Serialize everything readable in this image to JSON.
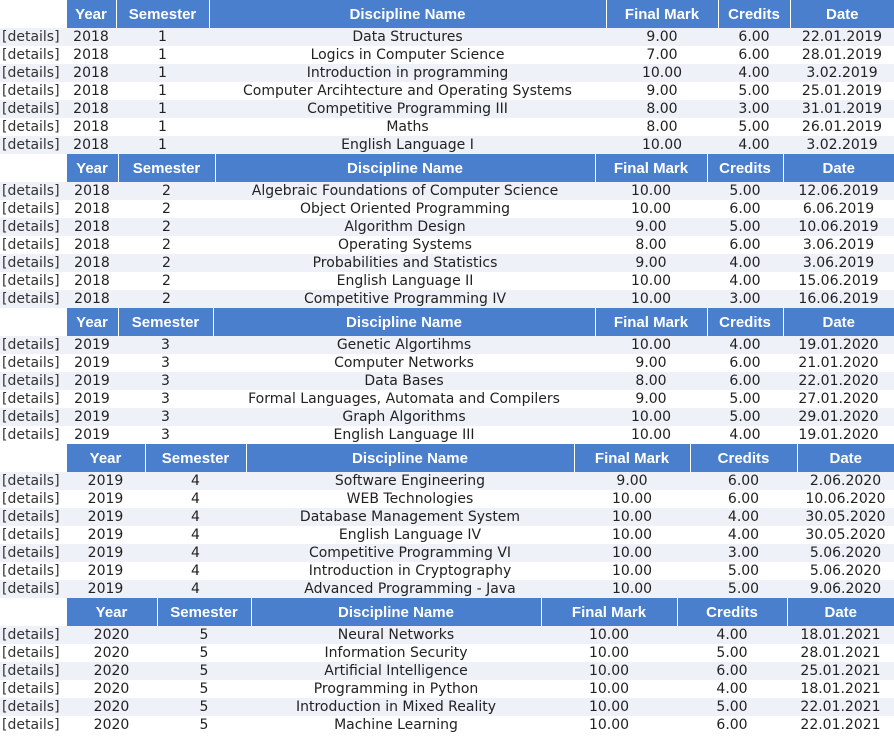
{
  "headers": {
    "details": "",
    "year": "Year",
    "semester": "Semester",
    "discipline": "Discipline Name",
    "final_mark": "Final Mark",
    "credits": "Credits",
    "date": "Date"
  },
  "details_label": "[details]",
  "tables": [
    {
      "rows": [
        {
          "year": "2018",
          "semester": "1",
          "discipline": "Data Structures",
          "mark": "9.00",
          "credits": "6.00",
          "date": "22.01.2019"
        },
        {
          "year": "2018",
          "semester": "1",
          "discipline": "Logics in Computer Science",
          "mark": "7.00",
          "credits": "6.00",
          "date": "28.01.2019"
        },
        {
          "year": "2018",
          "semester": "1",
          "discipline": "Introduction in programming",
          "mark": "10.00",
          "credits": "4.00",
          "date": "3.02.2019"
        },
        {
          "year": "2018",
          "semester": "1",
          "discipline": "Computer Arcihtecture and Operating Systems",
          "mark": "9.00",
          "credits": "5.00",
          "date": "25.01.2019"
        },
        {
          "year": "2018",
          "semester": "1",
          "discipline": "Competitive Programming III",
          "mark": "8.00",
          "credits": "3.00",
          "date": "31.01.2019"
        },
        {
          "year": "2018",
          "semester": "1",
          "discipline": "Maths",
          "mark": "8.00",
          "credits": "5.00",
          "date": "26.01.2019"
        },
        {
          "year": "2018",
          "semester": "1",
          "discipline": "English Language I",
          "mark": "10.00",
          "credits": "4.00",
          "date": "3.02.2019"
        }
      ]
    },
    {
      "rows": [
        {
          "year": "2018",
          "semester": "2",
          "discipline": "Algebraic Foundations of Computer Science",
          "mark": "10.00",
          "credits": "5.00",
          "date": "12.06.2019"
        },
        {
          "year": "2018",
          "semester": "2",
          "discipline": "Object Oriented Programming",
          "mark": "10.00",
          "credits": "6.00",
          "date": "6.06.2019"
        },
        {
          "year": "2018",
          "semester": "2",
          "discipline": "Algorithm Design",
          "mark": "9.00",
          "credits": "5.00",
          "date": "10.06.2019"
        },
        {
          "year": "2018",
          "semester": "2",
          "discipline": "Operating Systems",
          "mark": "8.00",
          "credits": "6.00",
          "date": "3.06.2019"
        },
        {
          "year": "2018",
          "semester": "2",
          "discipline": "Probabilities and Statistics",
          "mark": "9.00",
          "credits": "4.00",
          "date": "3.06.2019"
        },
        {
          "year": "2018",
          "semester": "2",
          "discipline": "English Language II",
          "mark": "10.00",
          "credits": "4.00",
          "date": "15.06.2019"
        },
        {
          "year": "2018",
          "semester": "2",
          "discipline": "Competitive Programming IV",
          "mark": "10.00",
          "credits": "3.00",
          "date": "16.06.2019"
        }
      ]
    },
    {
      "rows": [
        {
          "year": "2019",
          "semester": "3",
          "discipline": "Genetic Algortihms",
          "mark": "10.00",
          "credits": "4.00",
          "date": "19.01.2020"
        },
        {
          "year": "2019",
          "semester": "3",
          "discipline": "Computer Networks",
          "mark": "9.00",
          "credits": "6.00",
          "date": "21.01.2020"
        },
        {
          "year": "2019",
          "semester": "3",
          "discipline": "Data Bases",
          "mark": "8.00",
          "credits": "6.00",
          "date": "22.01.2020"
        },
        {
          "year": "2019",
          "semester": "3",
          "discipline": "Formal Languages, Automata and Compilers",
          "mark": "9.00",
          "credits": "5.00",
          "date": "27.01.2020"
        },
        {
          "year": "2019",
          "semester": "3",
          "discipline": "Graph Algorithms",
          "mark": "10.00",
          "credits": "5.00",
          "date": "29.01.2020"
        },
        {
          "year": "2019",
          "semester": "3",
          "discipline": "English Language III",
          "mark": "10.00",
          "credits": "4.00",
          "date": "19.01.2020"
        }
      ]
    },
    {
      "rows": [
        {
          "year": "2019",
          "semester": "4",
          "discipline": "Software Engineering",
          "mark": "9.00",
          "credits": "6.00",
          "date": "2.06.2020"
        },
        {
          "year": "2019",
          "semester": "4",
          "discipline": "WEB Technologies",
          "mark": "10.00",
          "credits": "6.00",
          "date": "10.06.2020"
        },
        {
          "year": "2019",
          "semester": "4",
          "discipline": "Database Management System",
          "mark": "10.00",
          "credits": "4.00",
          "date": "30.05.2020"
        },
        {
          "year": "2019",
          "semester": "4",
          "discipline": "English Language IV",
          "mark": "10.00",
          "credits": "4.00",
          "date": "30.05.2020"
        },
        {
          "year": "2019",
          "semester": "4",
          "discipline": "Competitive Programming VI",
          "mark": "10.00",
          "credits": "3.00",
          "date": "5.06.2020"
        },
        {
          "year": "2019",
          "semester": "4",
          "discipline": "Introduction in Cryptography",
          "mark": "10.00",
          "credits": "5.00",
          "date": "5.06.2020"
        },
        {
          "year": "2019",
          "semester": "4",
          "discipline": "Advanced Programming - Java",
          "mark": "10.00",
          "credits": "5.00",
          "date": "9.06.2020"
        }
      ]
    },
    {
      "rows": [
        {
          "year": "2020",
          "semester": "5",
          "discipline": "Neural Networks",
          "mark": "10.00",
          "credits": "4.00",
          "date": "18.01.2021"
        },
        {
          "year": "2020",
          "semester": "5",
          "discipline": "Information Security",
          "mark": "10.00",
          "credits": "5.00",
          "date": "28.01.2021"
        },
        {
          "year": "2020",
          "semester": "5",
          "discipline": "Artificial Intelligence",
          "mark": "10.00",
          "credits": "6.00",
          "date": "25.01.2021"
        },
        {
          "year": "2020",
          "semester": "5",
          "discipline": "Programming in Python",
          "mark": "10.00",
          "credits": "4.00",
          "date": "18.01.2021"
        },
        {
          "year": "2020",
          "semester": "5",
          "discipline": "Introduction in Mixed Reality",
          "mark": "10.00",
          "credits": "5.00",
          "date": "22.01.2021"
        },
        {
          "year": "2020",
          "semester": "5",
          "discipline": "Machine Learning",
          "mark": "10.00",
          "credits": "6.00",
          "date": "22.01.2021"
        }
      ]
    }
  ]
}
